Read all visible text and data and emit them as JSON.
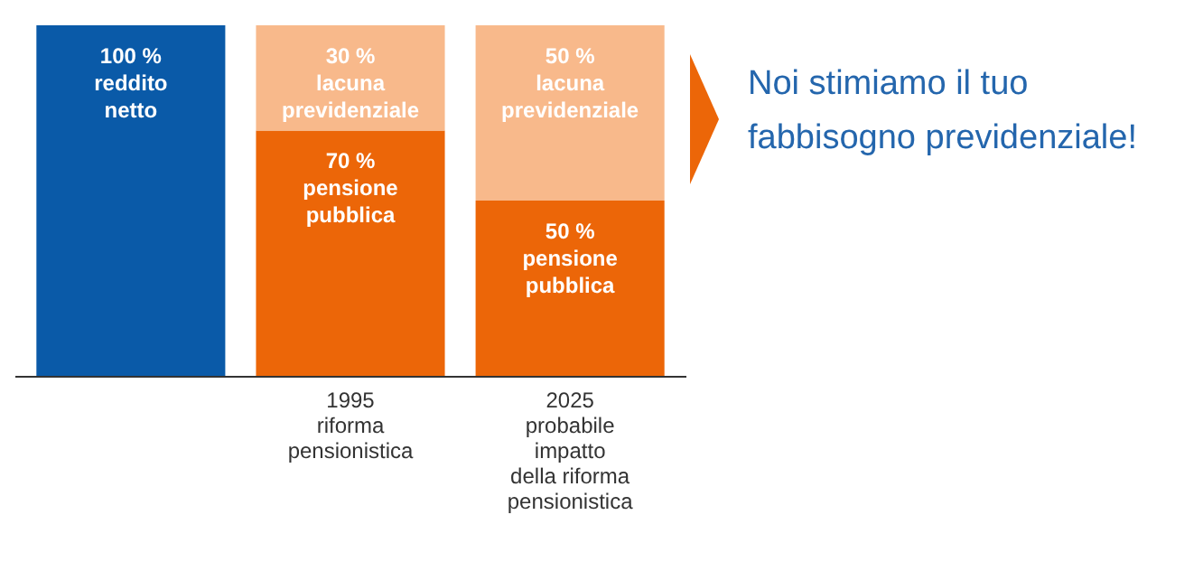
{
  "chart_data": {
    "type": "bar",
    "stacked": true,
    "tick_labels": "x",
    "ylim": [
      0,
      100
    ],
    "categories": [
      null,
      "1995\nriforma\npensionistica",
      "2025\nprobabile\nimpatto\ndella riforma\npensionistica"
    ],
    "series": [
      {
        "name": "reddito netto",
        "color": "#0a5aa8",
        "values": [
          100,
          null,
          null
        ],
        "value_labels": [
          "100 %",
          null,
          null
        ]
      },
      {
        "name": "pensione pubblica",
        "color": "#ec6608",
        "values": [
          null,
          70,
          50
        ],
        "value_labels": [
          null,
          "70 %",
          "50 %"
        ]
      },
      {
        "name": "lacuna previdenziale",
        "color": "#f8b98b",
        "values": [
          null,
          30,
          50
        ],
        "value_labels": [
          null,
          "30 %",
          "50 %"
        ]
      }
    ],
    "annotations": [
      "Noi stimiamo il tuo fabbisogno previdenziale!"
    ]
  }
}
